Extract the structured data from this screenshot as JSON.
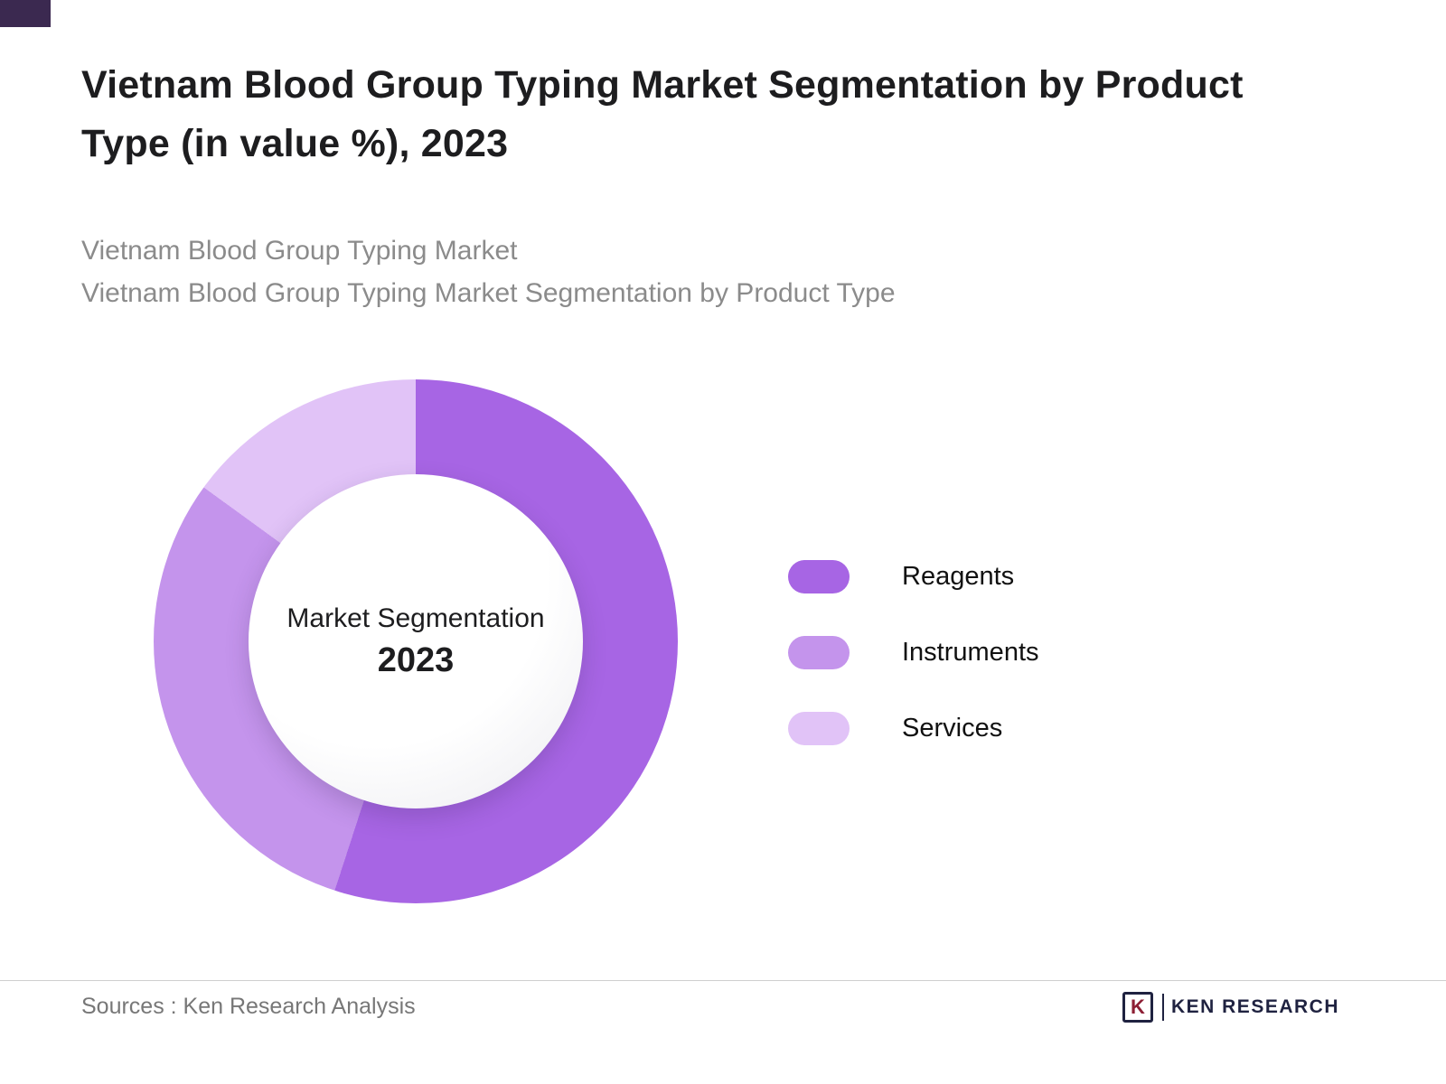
{
  "branding": {
    "accent_square_color": "#3b2950"
  },
  "header": {
    "title": "Vietnam Blood Group Typing Market Segmentation by Product Type (in value %), 2023",
    "subtitle_line1": "Vietnam Blood Group Typing Market",
    "subtitle_line2": "Vietnam Blood Group Typing Market Segmentation by Product Type"
  },
  "chart_data": {
    "type": "pie",
    "variant": "donut",
    "title": "Vietnam Blood Group Typing Market Segmentation by Product Type (in value %), 2023",
    "center_label": "Market Segmentation",
    "center_year": "2023",
    "units": "percent",
    "start_angle_deg": 0,
    "direction": "clockwise",
    "legend_position": "right",
    "series": [
      {
        "name": "Reagents",
        "value": 55,
        "color": "#a765e4"
      },
      {
        "name": "Instruments",
        "value": 30,
        "color": "#c494ec"
      },
      {
        "name": "Services",
        "value": 15,
        "color": "#e1c3f7"
      }
    ]
  },
  "footer": {
    "source": "Sources : Ken Research Analysis",
    "logo_letter": "K",
    "logo_text": "KEN RESEARCH"
  }
}
